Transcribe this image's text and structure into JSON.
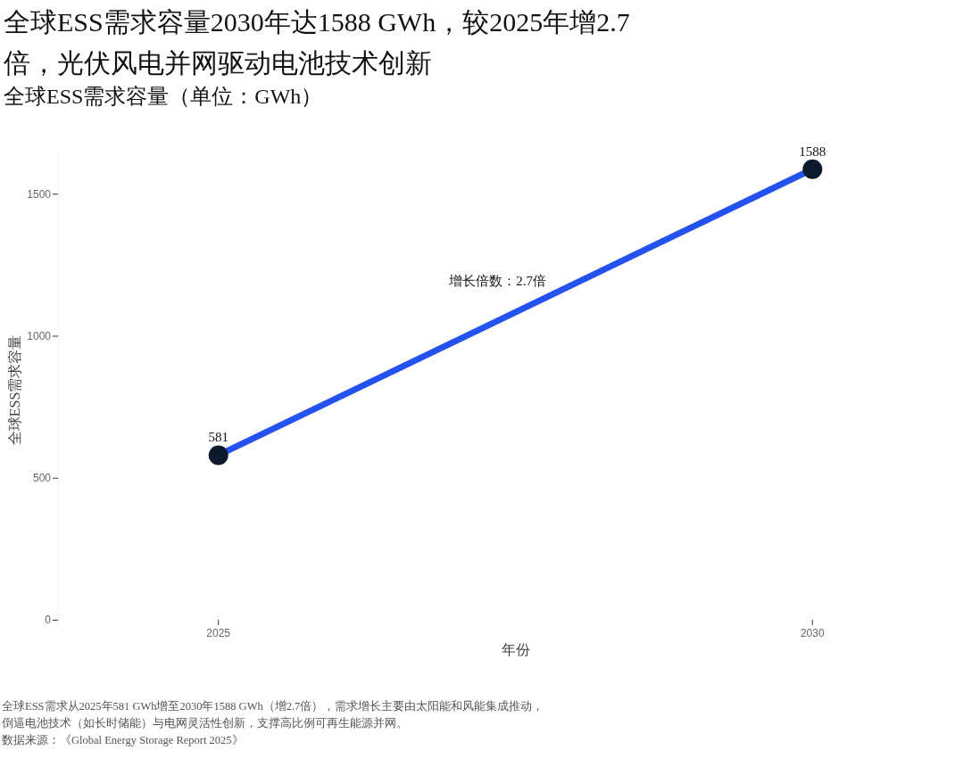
{
  "chart_data": {
    "type": "line",
    "title": "全球ESS需求容量2030年达1588 GWh，较2025年增2.7倍，光伏风电并网驱动电池技术创新",
    "subtitle": "全球ESS需求容量（单位：GWh）",
    "xlabel": "年份",
    "ylabel": "全球ESS需求容量",
    "categories": [
      "2025",
      "2030"
    ],
    "series": [
      {
        "color": "#2352f0",
        "colors": [
          "#0b1b2b",
          "#0b1b2b"
        ],
        "values": [
          581,
          1588
        ]
      }
    ],
    "marker": "circle",
    "data_labels": true,
    "ylim": [
      -30,
      1650
    ],
    "yticks": [
      0,
      500,
      1000,
      1500
    ],
    "grid": false,
    "annotations": [
      "增长倍数：2.7倍",
      "全球ESS需求从2025年581 GWh增至2030年1588 GWh（增2.7倍），需求增长主要由太阳能和风能集成推动，倒逼电池技术（如长时储能）与电网灵活性创新，支撑高比例可再生能源并网。",
      "数据来源：《Global Energy Storage Report 2025》"
    ]
  }
}
